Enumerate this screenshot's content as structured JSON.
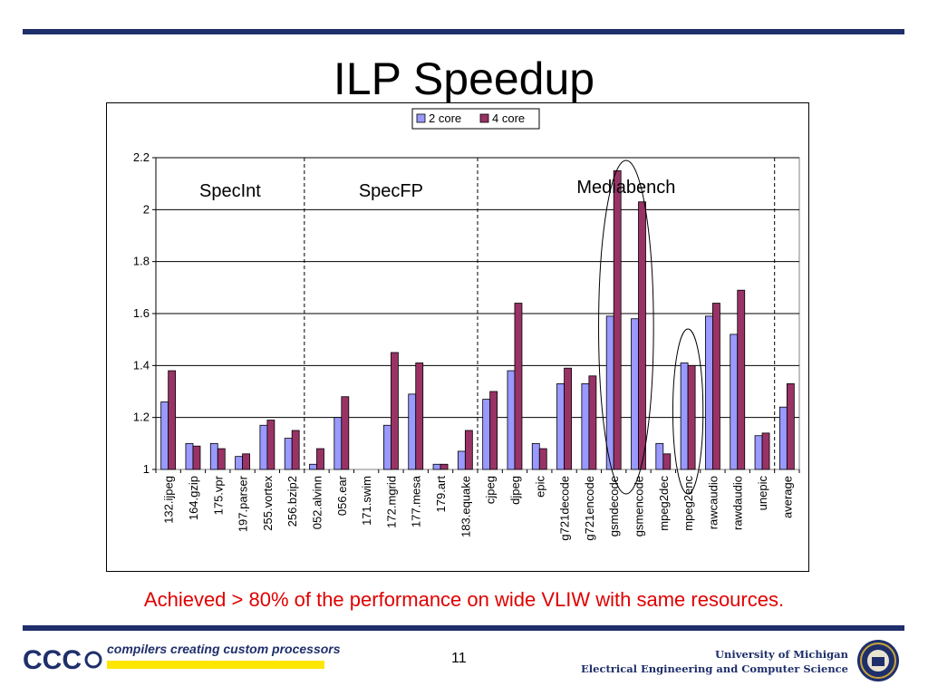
{
  "slide": {
    "title": "ILP Speedup",
    "caption": "Achieved > 80% of the performance on wide VLIW with same resources.",
    "page_number": "11",
    "footer_tagline": "compilers creating custom processors",
    "logo_text": "CCC",
    "university_line1": "University of Michigan",
    "university_line2": "Electrical Engineering and Computer Science"
  },
  "chart_data": {
    "type": "bar",
    "ylim": [
      1,
      2.2
    ],
    "yticks": [
      "1",
      "1.2",
      "1.4",
      "1.6",
      "1.8",
      "2",
      "2.2"
    ],
    "grid": true,
    "legend_position": "top-center",
    "categories": [
      "132.ijpeg",
      "164.gzip",
      "175.vpr",
      "197.parser",
      "255.vortex",
      "256.bzip2",
      "052.alvinn",
      "056.ear",
      "171.swim",
      "172.mgrid",
      "177.mesa",
      "179.art",
      "183.equake",
      "cjpeg",
      "djpeg",
      "epic",
      "g721decode",
      "g721encode",
      "gsmdecode",
      "gsmencode",
      "mpeg2dec",
      "mpeg2enc",
      "rawcaudio",
      "rawdaudio",
      "unepic",
      "average"
    ],
    "series": [
      {
        "name": "2 core",
        "color": "#9999ff",
        "values": [
          1.26,
          1.1,
          1.1,
          1.05,
          1.17,
          1.12,
          1.02,
          1.2,
          1.0,
          1.17,
          1.29,
          1.02,
          1.07,
          1.27,
          1.38,
          1.1,
          1.33,
          1.33,
          1.59,
          1.58,
          1.1,
          1.41,
          1.59,
          1.52,
          1.13,
          1.24
        ]
      },
      {
        "name": "4 core",
        "color": "#993366",
        "values": [
          1.38,
          1.09,
          1.08,
          1.06,
          1.19,
          1.15,
          1.08,
          1.28,
          1.0,
          1.45,
          1.41,
          1.02,
          1.15,
          1.3,
          1.64,
          1.08,
          1.39,
          1.36,
          2.15,
          2.03,
          1.06,
          1.4,
          1.64,
          1.69,
          1.14,
          1.33
        ]
      }
    ],
    "groups": [
      {
        "label": "SpecInt",
        "start": 0,
        "end": 5
      },
      {
        "label": "SpecFP",
        "start": 6,
        "end": 12
      },
      {
        "label": "Mediabench",
        "start": 13,
        "end": 24
      }
    ],
    "highlight_ellipses": [
      {
        "categories": [
          "gsmdecode",
          "gsmencode"
        ]
      },
      {
        "categories": [
          "mpeg2enc"
        ]
      }
    ]
  }
}
